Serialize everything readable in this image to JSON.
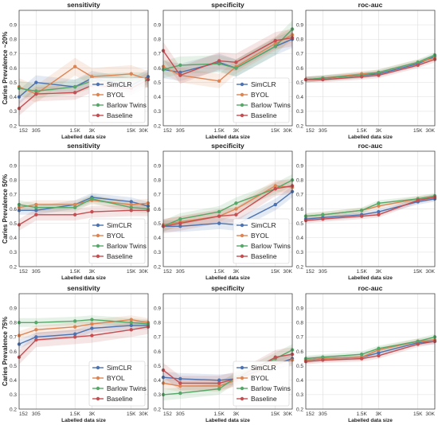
{
  "colors": {
    "SimCLR": "#4c72b0",
    "BYOL": "#dd8452",
    "Barlow Twins": "#55a868",
    "Baseline": "#c44e52"
  },
  "chart_data": [
    {
      "type": "line",
      "row": 0,
      "col": 0,
      "title": "sensitivity",
      "xlabel": "Labelled data size",
      "ylabel": "Caries Prevalence ~20%",
      "x": [
        152,
        305,
        1500,
        3000,
        15000,
        30000
      ],
      "x_tick_labels": [
        "152",
        "305",
        "1.5K",
        "3K",
        "15K",
        "30K"
      ],
      "ylim": [
        0.2,
        1.0
      ],
      "yticks": [
        0.2,
        0.3,
        0.4,
        0.5,
        0.6,
        0.7,
        0.8,
        0.9
      ],
      "grid": true,
      "legend": "lower-right",
      "series": [
        {
          "name": "SimCLR",
          "values": [
            0.4,
            0.5,
            0.47,
            0.53,
            0.48,
            0.54
          ],
          "band": 0.05
        },
        {
          "name": "BYOL",
          "values": [
            0.47,
            0.42,
            0.61,
            0.54,
            0.56,
            0.52
          ],
          "band": 0.06
        },
        {
          "name": "Barlow Twins",
          "values": [
            0.46,
            0.44,
            0.47,
            0.51,
            0.52,
            0.52
          ],
          "band": 0.05
        },
        {
          "name": "Baseline",
          "values": [
            0.32,
            0.42,
            0.43,
            0.48,
            0.46,
            0.52
          ],
          "band": 0.05
        }
      ]
    },
    {
      "type": "line",
      "row": 0,
      "col": 1,
      "title": "specificity",
      "xlabel": "Labelled data size",
      "x": [
        152,
        305,
        1500,
        3000,
        15000,
        30000
      ],
      "x_tick_labels": [
        "152",
        "305",
        "1.5K",
        "3K",
        "15K",
        "30K"
      ],
      "ylim": [
        0.2,
        1.0
      ],
      "yticks": [
        0.2,
        0.3,
        0.4,
        0.5,
        0.6,
        0.7,
        0.8,
        0.9
      ],
      "grid": true,
      "legend": "lower-right",
      "series": [
        {
          "name": "SimCLR",
          "values": [
            0.59,
            0.57,
            0.64,
            0.6,
            0.75,
            0.8
          ],
          "band": 0.06
        },
        {
          "name": "BYOL",
          "values": [
            0.61,
            0.55,
            0.51,
            0.61,
            0.77,
            0.83
          ],
          "band": 0.05
        },
        {
          "name": "Barlow Twins",
          "values": [
            0.59,
            0.62,
            0.63,
            0.6,
            0.75,
            0.87
          ],
          "band": 0.06
        },
        {
          "name": "Baseline",
          "values": [
            0.72,
            0.55,
            0.65,
            0.64,
            0.79,
            0.81
          ],
          "band": 0.06
        }
      ]
    },
    {
      "type": "line",
      "row": 0,
      "col": 2,
      "title": "roc-auc",
      "xlabel": "Labelled data size",
      "x": [
        152,
        305,
        1500,
        3000,
        15000,
        30000
      ],
      "x_tick_labels": [
        "152",
        "305",
        "1.5K",
        "3K",
        "15K",
        "30K"
      ],
      "ylim": [
        0.2,
        1.0
      ],
      "yticks": [
        0.2,
        0.3,
        0.4,
        0.5,
        0.6,
        0.7,
        0.8,
        0.9
      ],
      "grid": true,
      "legend": "none",
      "series": [
        {
          "name": "SimCLR",
          "values": [
            0.52,
            0.53,
            0.55,
            0.56,
            0.63,
            0.68
          ],
          "band": 0.02
        },
        {
          "name": "BYOL",
          "values": [
            0.52,
            0.53,
            0.56,
            0.57,
            0.64,
            0.67
          ],
          "band": 0.02
        },
        {
          "name": "Barlow Twins",
          "values": [
            0.52,
            0.53,
            0.55,
            0.57,
            0.64,
            0.69
          ],
          "band": 0.02
        },
        {
          "name": "Baseline",
          "values": [
            0.52,
            0.52,
            0.54,
            0.55,
            0.62,
            0.66
          ],
          "band": 0.02
        }
      ]
    },
    {
      "type": "line",
      "row": 1,
      "col": 0,
      "title": "sensitivity",
      "xlabel": "Labelled data size",
      "ylabel": "Caries Prevalence 50%",
      "x": [
        152,
        305,
        1500,
        3000,
        15000,
        30000
      ],
      "x_tick_labels": [
        "152",
        "305",
        "1.5K",
        "3K",
        "15K",
        "30K"
      ],
      "ylim": [
        0.2,
        1.0
      ],
      "yticks": [
        0.2,
        0.3,
        0.4,
        0.5,
        0.6,
        0.7,
        0.8,
        0.9
      ],
      "grid": true,
      "legend": "lower-right",
      "series": [
        {
          "name": "SimCLR",
          "values": [
            0.59,
            0.59,
            0.63,
            0.68,
            0.65,
            0.62
          ],
          "band": 0.03
        },
        {
          "name": "BYOL",
          "values": [
            0.61,
            0.63,
            0.63,
            0.66,
            0.63,
            0.64
          ],
          "band": 0.03
        },
        {
          "name": "Barlow Twins",
          "values": [
            0.63,
            0.61,
            0.61,
            0.67,
            0.61,
            0.6
          ],
          "band": 0.03
        },
        {
          "name": "Baseline",
          "values": [
            0.49,
            0.56,
            0.56,
            0.58,
            0.59,
            0.59
          ],
          "band": 0.04
        }
      ]
    },
    {
      "type": "line",
      "row": 1,
      "col": 1,
      "title": "specificity",
      "xlabel": "Labelled data size",
      "x": [
        152,
        305,
        1500,
        3000,
        15000,
        30000
      ],
      "x_tick_labels": [
        "152",
        "305",
        "1.5K",
        "3K",
        "15K",
        "30K"
      ],
      "ylim": [
        0.2,
        1.0
      ],
      "yticks": [
        0.2,
        0.3,
        0.4,
        0.5,
        0.6,
        0.7,
        0.8,
        0.9
      ],
      "grid": true,
      "legend": "lower-right",
      "series": [
        {
          "name": "SimCLR",
          "values": [
            0.48,
            0.48,
            0.5,
            0.49,
            0.63,
            0.72
          ],
          "band": 0.04
        },
        {
          "name": "BYOL",
          "values": [
            0.49,
            0.51,
            0.55,
            0.6,
            0.76,
            0.75
          ],
          "band": 0.04
        },
        {
          "name": "Barlow Twins",
          "values": [
            0.48,
            0.53,
            0.58,
            0.64,
            0.74,
            0.8
          ],
          "band": 0.04
        },
        {
          "name": "Baseline",
          "values": [
            0.48,
            0.5,
            0.55,
            0.56,
            0.74,
            0.76
          ],
          "band": 0.05
        }
      ]
    },
    {
      "type": "line",
      "row": 1,
      "col": 2,
      "title": "roc-auc",
      "xlabel": "Labelled data size",
      "x": [
        152,
        305,
        1500,
        3000,
        15000,
        30000
      ],
      "x_tick_labels": [
        "152",
        "305",
        "1.5K",
        "3K",
        "15K",
        "30K"
      ],
      "ylim": [
        0.2,
        1.0
      ],
      "yticks": [
        0.2,
        0.3,
        0.4,
        0.5,
        0.6,
        0.7,
        0.8,
        0.9
      ],
      "grid": true,
      "legend": "none",
      "series": [
        {
          "name": "SimCLR",
          "values": [
            0.53,
            0.54,
            0.56,
            0.58,
            0.65,
            0.67
          ],
          "band": 0.02
        },
        {
          "name": "BYOL",
          "values": [
            0.55,
            0.56,
            0.59,
            0.62,
            0.67,
            0.68
          ],
          "band": 0.02
        },
        {
          "name": "Barlow Twins",
          "values": [
            0.55,
            0.56,
            0.59,
            0.64,
            0.67,
            0.69
          ],
          "band": 0.02
        },
        {
          "name": "Baseline",
          "values": [
            0.52,
            0.53,
            0.55,
            0.56,
            0.66,
            0.68
          ],
          "band": 0.02
        }
      ]
    },
    {
      "type": "line",
      "row": 2,
      "col": 0,
      "title": "sensitivity",
      "xlabel": "Labelled data size",
      "ylabel": "Caries Prevalence 75%",
      "x": [
        152,
        305,
        1500,
        3000,
        15000,
        30000
      ],
      "x_tick_labels": [
        "152",
        "305",
        "1.5K",
        "3K",
        "15K",
        "30K"
      ],
      "ylim": [
        0.2,
        1.0
      ],
      "yticks": [
        0.2,
        0.3,
        0.4,
        0.5,
        0.6,
        0.7,
        0.8,
        0.9
      ],
      "grid": true,
      "legend": "lower-right",
      "series": [
        {
          "name": "SimCLR",
          "values": [
            0.65,
            0.7,
            0.72,
            0.76,
            0.78,
            0.78
          ],
          "band": 0.03
        },
        {
          "name": "BYOL",
          "values": [
            0.71,
            0.75,
            0.77,
            0.79,
            0.82,
            0.8
          ],
          "band": 0.03
        },
        {
          "name": "Barlow Twins",
          "values": [
            0.8,
            0.8,
            0.81,
            0.82,
            0.8,
            0.79
          ],
          "band": 0.03
        },
        {
          "name": "Baseline",
          "values": [
            0.56,
            0.68,
            0.7,
            0.71,
            0.75,
            0.77
          ],
          "band": 0.05
        }
      ]
    },
    {
      "type": "line",
      "row": 2,
      "col": 1,
      "title": "specificity",
      "xlabel": "Labelled data size",
      "x": [
        152,
        305,
        1500,
        3000,
        15000,
        30000
      ],
      "x_tick_labels": [
        "152",
        "305",
        "1.5K",
        "3K",
        "15K",
        "30K"
      ],
      "ylim": [
        0.2,
        1.0
      ],
      "yticks": [
        0.2,
        0.3,
        0.4,
        0.5,
        0.6,
        0.7,
        0.8,
        0.9
      ],
      "grid": true,
      "legend": "lower-right",
      "series": [
        {
          "name": "SimCLR",
          "values": [
            0.42,
            0.41,
            0.4,
            0.41,
            0.51,
            0.55
          ],
          "band": 0.04
        },
        {
          "name": "BYOL",
          "values": [
            0.38,
            0.36,
            0.36,
            0.4,
            0.51,
            0.54
          ],
          "band": 0.04
        },
        {
          "name": "Barlow Twins",
          "values": [
            0.3,
            0.31,
            0.34,
            0.42,
            0.55,
            0.61
          ],
          "band": 0.04
        },
        {
          "name": "Baseline",
          "values": [
            0.47,
            0.38,
            0.38,
            0.41,
            0.56,
            0.58
          ],
          "band": 0.05
        }
      ]
    },
    {
      "type": "line",
      "row": 2,
      "col": 2,
      "title": "roc-auc",
      "xlabel": "Labelled data size",
      "x": [
        152,
        305,
        1500,
        3000,
        15000,
        30000
      ],
      "x_tick_labels": [
        "152",
        "305",
        "1.5K",
        "3K",
        "15K",
        "30K"
      ],
      "ylim": [
        0.2,
        1.0
      ],
      "yticks": [
        0.2,
        0.3,
        0.4,
        0.5,
        0.6,
        0.7,
        0.8,
        0.9
      ],
      "grid": true,
      "legend": "none",
      "series": [
        {
          "name": "SimCLR",
          "values": [
            0.54,
            0.55,
            0.56,
            0.59,
            0.66,
            0.67
          ],
          "band": 0.02
        },
        {
          "name": "BYOL",
          "values": [
            0.54,
            0.55,
            0.56,
            0.61,
            0.67,
            0.68
          ],
          "band": 0.02
        },
        {
          "name": "Barlow Twins",
          "values": [
            0.55,
            0.56,
            0.58,
            0.62,
            0.67,
            0.7
          ],
          "band": 0.02
        },
        {
          "name": "Baseline",
          "values": [
            0.53,
            0.54,
            0.55,
            0.57,
            0.65,
            0.67
          ],
          "band": 0.02
        }
      ]
    }
  ]
}
